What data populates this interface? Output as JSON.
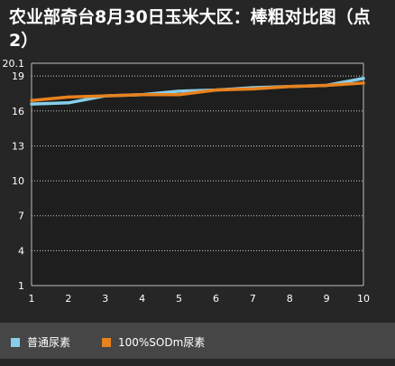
{
  "title": "农业部奇台8月30日玉米大区：棒粗对比图（点2）",
  "chart_data": {
    "type": "line",
    "title": "农业部奇台8月30日玉米大区：棒粗对比图（点2）",
    "x": [
      1,
      2,
      3,
      4,
      5,
      6,
      7,
      8,
      9,
      10
    ],
    "y_ticks": [
      1,
      4,
      7,
      10,
      13,
      16,
      19,
      20.1
    ],
    "ylim": [
      1,
      20.1
    ],
    "xlim": [
      1,
      10
    ],
    "grid": true,
    "legend_position": "bottom",
    "series": [
      {
        "name": "普通尿素",
        "color": "#87CEEB",
        "values": [
          16.6,
          16.7,
          17.3,
          17.4,
          17.7,
          17.8,
          18.0,
          18.1,
          18.2,
          18.8
        ]
      },
      {
        "name": "100%SODm尿素",
        "color": "#E8821E",
        "values": [
          16.9,
          17.2,
          17.3,
          17.4,
          17.4,
          17.8,
          17.9,
          18.1,
          18.2,
          18.4
        ]
      }
    ]
  }
}
